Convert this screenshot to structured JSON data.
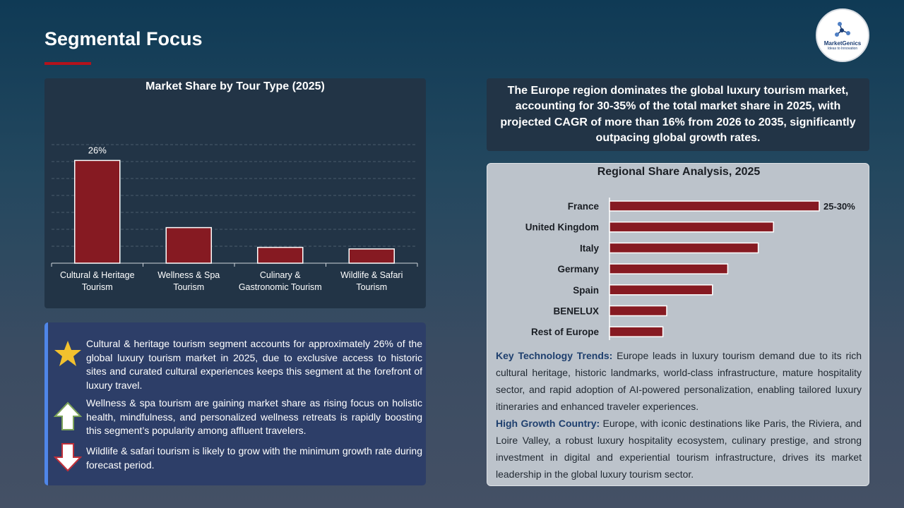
{
  "header": {
    "title": "Segmental Focus",
    "logo_name": "MarketGenics",
    "logo_tagline": "Ideas to Innovation"
  },
  "tour_chart": {
    "title": "Market Share by Tour Type (2025)",
    "value_label": "26%"
  },
  "notes": [
    {
      "icon": "star-icon",
      "text": "Cultural & heritage tourism segment accounts for approximately 26% of the global luxury tourism market in 2025, due to exclusive access to historic sites and curated cultural experiences keeps this segment at the forefront of luxury travel."
    },
    {
      "icon": "arrow-up-icon",
      "text": "Wellness & spa tourism are gaining market share as rising focus on holistic health, mindfulness, and personalized wellness retreats is rapidly boosting this segment’s popularity among affluent travelers."
    },
    {
      "icon": "arrow-down-icon",
      "text": "Wildlife & safari tourism is likely to grow with the minimum growth rate during forecast period."
    }
  ],
  "summary": "The Europe region dominates the global luxury tourism market, accounting for 30-35% of the total market share in 2025, with projected CAGR of more than 16% from 2026 to 2035, significantly outpacing global growth rates.",
  "regional": {
    "title": "Regional Share Analysis, 2025",
    "value_label": "25-30%",
    "trends_label": "Key Technology Trends:",
    "trends_text": " Europe leads in luxury tourism demand due to its rich cultural heritage, historic landmarks, world-class infrastructure, mature hospitality sector, and rapid adoption of AI-powered personalization, enabling tailored luxury itineraries and enhanced traveler experiences.",
    "growth_label": "High Growth Country:",
    "growth_text": " Europe, with iconic destinations like Paris, the Riviera, and Loire Valley, a robust luxury hospitality ecosystem, culinary prestige, and strong investment in digital and experiential tourism infrastructure, drives its market leadership in the global luxury tourism sector."
  },
  "colors": {
    "bar": "#861a22",
    "accent_underline": "#b4121c",
    "notes_border": "#4f86e8"
  },
  "chart_data": [
    {
      "type": "bar",
      "categories": [
        "Cultural & Heritage Tourism",
        "Wellness & Spa Tourism",
        "Culinary & Gastronomic Tourism",
        "Wildlife & Safari Tourism"
      ],
      "category_lines": [
        [
          "Cultural & Heritage",
          "Tourism"
        ],
        [
          "Wellness & Spa",
          "Tourism"
        ],
        [
          "Culinary &",
          "Gastronomic Tourism"
        ],
        [
          "Wildlife & Safari",
          "Tourism"
        ]
      ],
      "values": [
        26,
        9,
        4,
        3.6
      ],
      "data_labels": [
        "26%",
        "",
        "",
        ""
      ],
      "title": "Market Share by Tour Type (2025)",
      "ylim": [
        0,
        30
      ],
      "grid": true,
      "grid_style": "dashed"
    },
    {
      "type": "bar",
      "orientation": "horizontal",
      "categories": [
        "France",
        "United Kingdom",
        "Italy",
        "Germany",
        "Spain",
        "BENELUX",
        "Rest of Europe"
      ],
      "values": [
        27.5,
        21.5,
        19.5,
        15.5,
        13.5,
        7.5,
        7
      ],
      "data_labels": [
        "25-30%",
        "",
        "",
        "",
        "",
        "",
        ""
      ],
      "title": "Regional Share Analysis, 2025",
      "xlim": [
        0,
        30
      ]
    }
  ]
}
